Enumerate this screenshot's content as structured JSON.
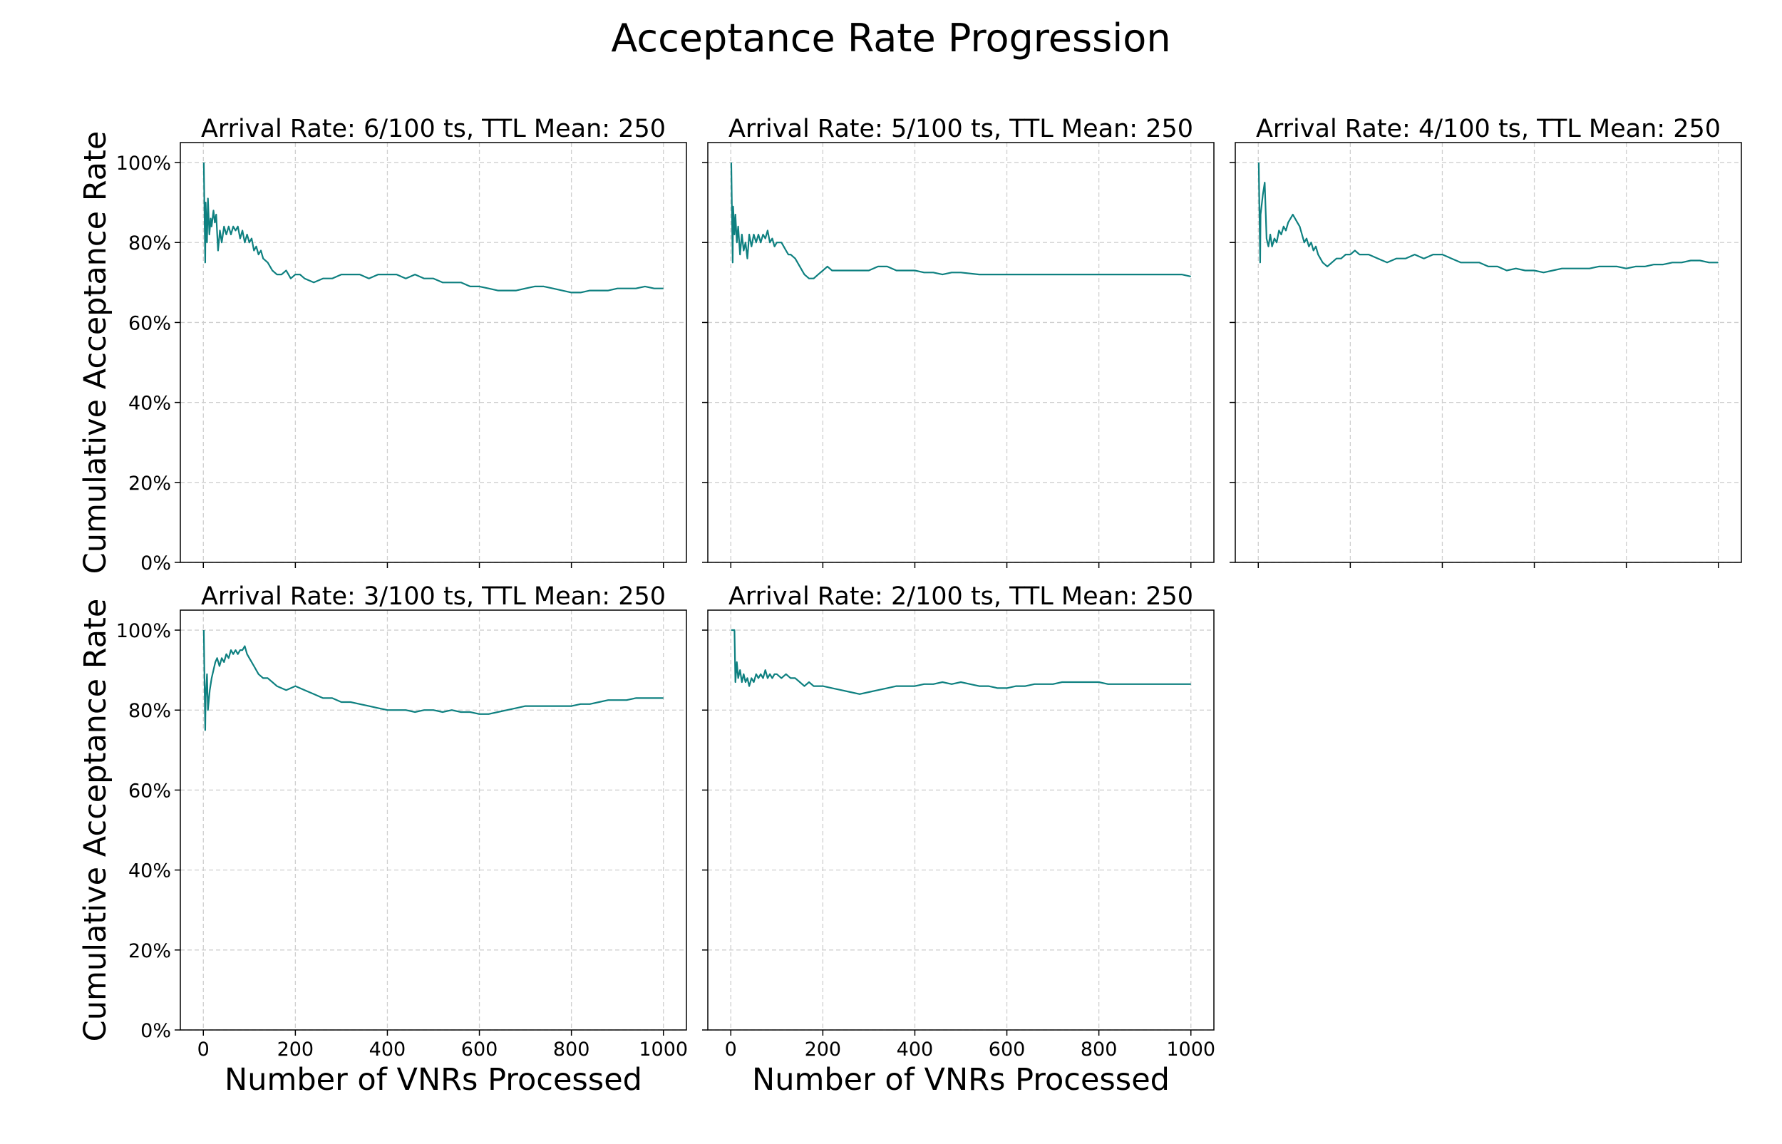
{
  "figure_title": "Acceptance Rate Progression",
  "colors": {
    "line": "#0e8080",
    "grid": "#cfcfcf",
    "axis": "#000000"
  },
  "chart_data": [
    {
      "type": "line",
      "title": "Arrival Rate: 6/100 ts, TTL Mean: 250",
      "xlabel": "",
      "ylabel": "Cumulative Acceptance Rate",
      "xlim": [
        -50,
        1050
      ],
      "ylim": [
        0,
        105
      ],
      "xticks": [
        0,
        200,
        400,
        600,
        800,
        1000
      ],
      "xtick_labels": [],
      "yticks": [
        0,
        20,
        40,
        60,
        80,
        100
      ],
      "ytick_labels": [
        "0%",
        "20%",
        "40%",
        "60%",
        "80%",
        "100%"
      ],
      "grid": true,
      "series": [
        {
          "x": [
            1,
            4,
            5,
            8,
            10,
            13,
            16,
            18,
            22,
            25,
            28,
            32,
            36,
            40,
            45,
            50,
            55,
            60,
            65,
            70,
            75,
            80,
            85,
            90,
            95,
            100,
            105,
            110,
            115,
            120,
            125,
            130,
            140,
            150,
            160,
            170,
            180,
            190,
            200,
            210,
            220,
            240,
            260,
            280,
            300,
            320,
            340,
            360,
            380,
            400,
            420,
            440,
            460,
            480,
            500,
            520,
            540,
            560,
            580,
            600,
            620,
            640,
            660,
            680,
            700,
            720,
            740,
            760,
            780,
            800,
            820,
            840,
            860,
            880,
            900,
            920,
            940,
            960,
            980,
            1000
          ],
          "y": [
            100,
            75,
            90,
            80,
            91,
            82,
            86,
            84,
            88,
            85,
            87,
            78,
            83,
            80,
            84,
            82,
            84,
            82,
            84,
            83,
            84,
            81,
            83,
            80,
            82,
            80,
            81,
            78,
            79,
            77,
            78,
            76,
            75,
            73,
            72,
            72,
            73,
            71,
            72,
            72,
            71,
            70,
            71,
            71,
            72,
            72,
            72,
            71,
            72,
            72,
            72,
            71,
            72,
            71,
            71,
            70,
            70,
            70,
            69,
            69,
            68.5,
            68,
            68,
            68,
            68.5,
            69,
            69,
            68.5,
            68,
            67.5,
            67.5,
            68,
            68,
            68,
            68.5,
            68.5,
            68.5,
            69,
            68.5,
            68.5
          ]
        }
      ]
    },
    {
      "type": "line",
      "title": "Arrival Rate: 5/100 ts, TTL Mean: 250",
      "xlabel": "",
      "ylabel": "",
      "xlim": [
        -50,
        1050
      ],
      "ylim": [
        0,
        105
      ],
      "xticks": [
        0,
        200,
        400,
        600,
        800,
        1000
      ],
      "xtick_labels": [],
      "yticks": [
        0,
        20,
        40,
        60,
        80,
        100
      ],
      "ytick_labels": [],
      "grid": true,
      "series": [
        {
          "x": [
            1,
            4,
            5,
            8,
            10,
            13,
            16,
            20,
            24,
            28,
            32,
            36,
            40,
            45,
            50,
            55,
            60,
            65,
            70,
            75,
            80,
            85,
            90,
            95,
            100,
            105,
            110,
            115,
            120,
            125,
            130,
            140,
            150,
            160,
            170,
            180,
            190,
            200,
            210,
            220,
            240,
            260,
            280,
            300,
            320,
            340,
            360,
            380,
            400,
            420,
            440,
            460,
            480,
            500,
            540,
            580,
            620,
            660,
            700,
            740,
            780,
            820,
            860,
            900,
            940,
            980,
            1000
          ],
          "y": [
            100,
            75,
            89,
            82,
            87,
            80,
            84,
            77,
            82,
            78,
            80,
            76,
            82,
            79,
            82,
            80,
            82,
            80,
            82,
            81,
            83,
            80,
            81,
            79,
            80,
            80,
            80,
            79,
            78,
            77,
            77,
            76,
            74,
            72,
            71,
            71,
            72,
            73,
            74,
            73,
            73,
            73,
            73,
            73,
            74,
            74,
            73,
            73,
            73,
            72.5,
            72.5,
            72,
            72.5,
            72.5,
            72,
            72,
            72,
            72,
            72,
            72,
            72,
            72,
            72,
            72,
            72,
            72,
            71.5
          ]
        }
      ]
    },
    {
      "type": "line",
      "title": "Arrival Rate: 4/100 ts, TTL Mean: 250",
      "xlabel": "",
      "ylabel": "",
      "xlim": [
        -50,
        1050
      ],
      "ylim": [
        0,
        105
      ],
      "xticks": [
        0,
        200,
        400,
        600,
        800,
        1000
      ],
      "xtick_labels": [],
      "yticks": [
        0,
        20,
        40,
        60,
        80,
        100
      ],
      "ytick_labels": [],
      "grid": true,
      "series": [
        {
          "x": [
            1,
            4,
            5,
            10,
            14,
            18,
            22,
            26,
            30,
            35,
            40,
            45,
            50,
            55,
            60,
            65,
            70,
            75,
            80,
            85,
            90,
            95,
            100,
            105,
            110,
            115,
            120,
            125,
            130,
            140,
            150,
            160,
            170,
            180,
            190,
            200,
            210,
            220,
            240,
            260,
            280,
            300,
            320,
            340,
            360,
            380,
            400,
            420,
            440,
            460,
            480,
            500,
            520,
            540,
            560,
            580,
            600,
            620,
            640,
            660,
            680,
            700,
            720,
            740,
            760,
            780,
            800,
            820,
            840,
            860,
            880,
            900,
            920,
            940,
            960,
            980,
            1000
          ],
          "y": [
            100,
            75,
            87,
            92,
            95,
            81,
            79,
            82,
            79,
            81,
            80,
            83,
            82,
            84,
            83,
            85,
            86,
            87,
            86,
            85,
            84,
            82,
            80,
            81,
            79,
            80,
            78,
            79,
            77,
            75,
            74,
            75,
            76,
            76,
            77,
            77,
            78,
            77,
            77,
            76,
            75,
            76,
            76,
            77,
            76,
            77,
            77,
            76,
            75,
            75,
            75,
            74,
            74,
            73,
            73.5,
            73,
            73,
            72.5,
            73,
            73.5,
            73.5,
            73.5,
            73.5,
            74,
            74,
            74,
            73.5,
            74,
            74,
            74.5,
            74.5,
            75,
            75,
            75.5,
            75.5,
            75,
            75
          ]
        }
      ]
    },
    {
      "type": "line",
      "title": "Arrival Rate: 3/100 ts, TTL Mean: 250",
      "xlabel": "Number of VNRs Processed",
      "ylabel": "Cumulative Acceptance Rate",
      "xlim": [
        -50,
        1050
      ],
      "ylim": [
        0,
        105
      ],
      "xticks": [
        0,
        200,
        400,
        600,
        800,
        1000
      ],
      "xtick_labels": [
        "0",
        "200",
        "400",
        "600",
        "800",
        "1000"
      ],
      "yticks": [
        0,
        20,
        40,
        60,
        80,
        100
      ],
      "ytick_labels": [
        "0%",
        "20%",
        "40%",
        "60%",
        "80%",
        "100%"
      ],
      "grid": true,
      "series": [
        {
          "x": [
            1,
            4,
            5,
            8,
            10,
            14,
            18,
            22,
            26,
            30,
            35,
            40,
            45,
            50,
            55,
            60,
            65,
            70,
            75,
            80,
            85,
            90,
            95,
            100,
            110,
            120,
            130,
            140,
            150,
            160,
            180,
            200,
            220,
            240,
            260,
            280,
            300,
            320,
            340,
            360,
            380,
            400,
            420,
            440,
            460,
            480,
            500,
            520,
            540,
            560,
            580,
            600,
            620,
            640,
            660,
            680,
            700,
            720,
            740,
            760,
            780,
            800,
            820,
            840,
            860,
            880,
            900,
            920,
            940,
            960,
            980,
            1000
          ],
          "y": [
            100,
            75,
            83,
            89,
            80,
            85,
            88,
            90,
            92,
            93,
            91,
            93,
            92,
            94,
            93,
            95,
            94,
            95,
            94,
            95,
            95,
            96,
            94,
            93,
            91,
            89,
            88,
            88,
            87,
            86,
            85,
            86,
            85,
            84,
            83,
            83,
            82,
            82,
            81.5,
            81,
            80.5,
            80,
            80,
            80,
            79.5,
            80,
            80,
            79.5,
            80,
            79.5,
            79.5,
            79,
            79,
            79.5,
            80,
            80.5,
            81,
            81,
            81,
            81,
            81,
            81,
            81.5,
            81.5,
            82,
            82.5,
            82.5,
            82.5,
            83,
            83,
            83,
            83
          ]
        }
      ]
    },
    {
      "type": "line",
      "title": "Arrival Rate: 2/100 ts, TTL Mean: 250",
      "xlabel": "Number of VNRs Processed",
      "ylabel": "",
      "xlim": [
        -50,
        1050
      ],
      "ylim": [
        0,
        105
      ],
      "xticks": [
        0,
        200,
        400,
        600,
        800,
        1000
      ],
      "xtick_labels": [
        "0",
        "200",
        "400",
        "600",
        "800",
        "1000"
      ],
      "yticks": [
        0,
        20,
        40,
        60,
        80,
        100
      ],
      "ytick_labels": [],
      "grid": true,
      "series": [
        {
          "x": [
            1,
            3,
            5,
            8,
            10,
            13,
            16,
            20,
            24,
            28,
            32,
            36,
            40,
            45,
            50,
            55,
            60,
            65,
            70,
            75,
            80,
            85,
            90,
            95,
            100,
            110,
            120,
            130,
            140,
            150,
            160,
            170,
            180,
            190,
            200,
            220,
            240,
            260,
            280,
            300,
            320,
            340,
            360,
            380,
            400,
            420,
            440,
            460,
            480,
            500,
            520,
            540,
            560,
            580,
            600,
            620,
            640,
            660,
            680,
            700,
            720,
            740,
            760,
            780,
            800,
            820,
            840,
            860,
            880,
            900,
            920,
            940,
            960,
            980,
            1000
          ],
          "y": [
            100,
            100,
            100,
            100,
            87,
            92,
            88,
            90,
            87,
            89,
            87,
            88,
            86,
            88,
            87,
            89,
            88,
            89,
            88,
            90,
            88,
            89,
            88,
            89,
            89,
            88,
            89,
            88,
            88,
            87,
            86,
            87,
            86,
            86,
            86,
            85.5,
            85,
            84.5,
            84,
            84.5,
            85,
            85.5,
            86,
            86,
            86,
            86.5,
            86.5,
            87,
            86.5,
            87,
            86.5,
            86,
            86,
            85.5,
            85.5,
            86,
            86,
            86.5,
            86.5,
            86.5,
            87,
            87,
            87,
            87,
            87,
            86.5,
            86.5,
            86.5,
            86.5,
            86.5,
            86.5,
            86.5,
            86.5,
            86.5,
            86.5
          ]
        }
      ]
    }
  ]
}
